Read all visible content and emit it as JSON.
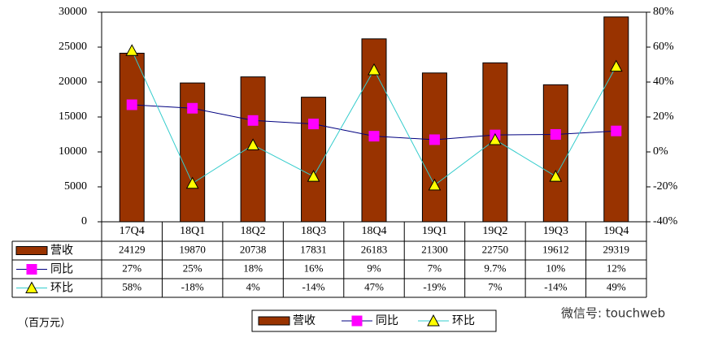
{
  "chart_data": {
    "type": "bar",
    "unit_note": "（百万元）",
    "watermark": "微信号: touchweb",
    "categories": [
      "17Q4",
      "18Q1",
      "18Q2",
      "18Q3",
      "18Q4",
      "19Q1",
      "19Q2",
      "19Q3",
      "19Q4"
    ],
    "series": [
      {
        "name": "营收",
        "type": "bar",
        "color": "#993300",
        "values": [
          24129,
          19870,
          20738,
          17831,
          26183,
          21300,
          22750,
          19612,
          29319
        ]
      },
      {
        "name": "同比",
        "type": "line",
        "axis": "y2",
        "color": "#000080",
        "marker": "square",
        "marker_color": "#ff00ff",
        "values": [
          27,
          25,
          18,
          16,
          9,
          7,
          9.7,
          10,
          12
        ],
        "value_labels": [
          "27%",
          "25%",
          "18%",
          "16%",
          "9%",
          "7%",
          "9.7%",
          "10%",
          "12%"
        ]
      },
      {
        "name": "环比",
        "type": "line",
        "axis": "y2",
        "color": "#33cccc",
        "marker": "triangle",
        "marker_color": "#ffff00",
        "values": [
          58,
          -18,
          4,
          -14,
          47,
          -19,
          7,
          -14,
          49
        ],
        "value_labels": [
          "58%",
          "-18%",
          "4%",
          "-14%",
          "47%",
          "-19%",
          "7%",
          "-14%",
          "49%"
        ]
      }
    ],
    "ylim": [
      0,
      30000
    ],
    "yticks": [
      0,
      5000,
      10000,
      15000,
      20000,
      25000,
      30000
    ],
    "y2lim": [
      -40,
      80
    ],
    "y2ticks": [
      {
        "value": -40,
        "label": "-40%"
      },
      {
        "value": -20,
        "label": "-20%"
      },
      {
        "value": 0,
        "label": "0%"
      },
      {
        "value": 20,
        "label": "20%"
      },
      {
        "value": 40,
        "label": "40%"
      },
      {
        "value": 60,
        "label": "60%"
      },
      {
        "value": 80,
        "label": "80%"
      }
    ]
  }
}
